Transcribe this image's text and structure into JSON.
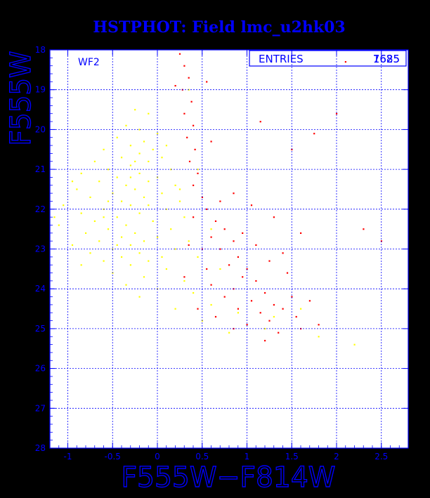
{
  "chart_data": {
    "type": "scatter",
    "title": "HSTPHOT: Field lmc_u2hk03",
    "xlabel": "F555W−F814W",
    "ylabel": "F555W",
    "xlim": [
      -1.2,
      2.8
    ],
    "ylim": [
      28,
      18
    ],
    "y_inverted": true,
    "grid": true,
    "panel_label": "WF2",
    "stats_box": {
      "label": "ENTRIES",
      "values": [
        "7625",
        "1685"
      ]
    },
    "x_ticks": [
      -1,
      -0.5,
      0,
      0.5,
      1,
      1.5,
      2,
      2.5
    ],
    "x_tick_labels": [
      "-1",
      "-0.5",
      "0",
      "0.5",
      "1",
      "1.5",
      "2",
      "2.5"
    ],
    "y_ticks": [
      18,
      19,
      20,
      21,
      22,
      23,
      24,
      25,
      26,
      27,
      28
    ],
    "y_tick_labels": [
      "18",
      "19",
      "20",
      "21",
      "22",
      "23",
      "24",
      "25",
      "26",
      "27",
      "28"
    ],
    "series": [
      {
        "color": "#ffff00",
        "count": 7625,
        "points": [
          [
            -0.25,
            19.5
          ],
          [
            -0.1,
            19.6
          ],
          [
            -0.35,
            19.9
          ],
          [
            -0.2,
            20.0
          ],
          [
            0.0,
            20.1
          ],
          [
            -0.45,
            20.2
          ],
          [
            -0.15,
            20.3
          ],
          [
            -0.3,
            20.4
          ],
          [
            0.1,
            20.4
          ],
          [
            -0.6,
            20.5
          ],
          [
            -0.2,
            20.6
          ],
          [
            -0.4,
            20.7
          ],
          [
            0.05,
            20.7
          ],
          [
            -0.7,
            20.8
          ],
          [
            -0.1,
            20.8
          ],
          [
            -0.3,
            20.9
          ],
          [
            -0.55,
            21.0
          ],
          [
            0.15,
            21.0
          ],
          [
            -0.2,
            21.1
          ],
          [
            -0.85,
            21.1
          ],
          [
            -0.45,
            21.2
          ],
          [
            0.0,
            21.2
          ],
          [
            -0.65,
            21.3
          ],
          [
            -0.1,
            21.3
          ],
          [
            -0.35,
            21.4
          ],
          [
            0.2,
            21.4
          ],
          [
            -0.9,
            21.5
          ],
          [
            -0.25,
            21.5
          ],
          [
            -0.5,
            21.6
          ],
          [
            0.05,
            21.6
          ],
          [
            -0.75,
            21.7
          ],
          [
            -0.15,
            21.7
          ],
          [
            -0.4,
            21.8
          ],
          [
            0.25,
            21.8
          ],
          [
            -1.05,
            21.9
          ],
          [
            -0.3,
            21.9
          ],
          [
            -0.6,
            22.0
          ],
          [
            0.1,
            22.0
          ],
          [
            -0.2,
            22.1
          ],
          [
            -0.85,
            22.1
          ],
          [
            -0.45,
            22.2
          ],
          [
            0.3,
            22.2
          ],
          [
            -0.7,
            22.3
          ],
          [
            -0.05,
            22.3
          ],
          [
            -0.35,
            22.4
          ],
          [
            -1.1,
            22.4
          ],
          [
            -0.55,
            22.5
          ],
          [
            0.15,
            22.5
          ],
          [
            -0.25,
            22.6
          ],
          [
            -0.8,
            22.6
          ],
          [
            -0.4,
            22.7
          ],
          [
            0.0,
            22.7
          ],
          [
            -0.65,
            22.8
          ],
          [
            -0.15,
            22.8
          ],
          [
            -0.95,
            22.9
          ],
          [
            -0.3,
            22.9
          ],
          [
            -0.5,
            23.0
          ],
          [
            0.2,
            23.0
          ],
          [
            -0.2,
            23.1
          ],
          [
            -0.75,
            23.1
          ],
          [
            -0.4,
            23.2
          ],
          [
            0.05,
            23.2
          ],
          [
            -0.6,
            23.3
          ],
          [
            -0.1,
            23.3
          ],
          [
            -0.85,
            23.4
          ],
          [
            -0.3,
            23.4
          ],
          [
            0.1,
            23.5
          ],
          [
            -0.5,
            23.6
          ],
          [
            -0.15,
            23.7
          ],
          [
            0.3,
            23.8
          ],
          [
            -0.35,
            23.9
          ],
          [
            0.0,
            24.0
          ],
          [
            0.4,
            24.1
          ],
          [
            -0.2,
            24.2
          ],
          [
            0.6,
            24.4
          ],
          [
            0.2,
            24.5
          ],
          [
            0.9,
            24.6
          ],
          [
            0.5,
            24.8
          ],
          [
            1.3,
            24.7
          ],
          [
            1.6,
            24.5
          ],
          [
            1.2,
            25.0
          ],
          [
            0.8,
            25.1
          ],
          [
            1.8,
            25.2
          ],
          [
            2.2,
            25.4
          ],
          [
            0.45,
            21.0
          ],
          [
            0.6,
            22.5
          ],
          [
            0.7,
            23.5
          ],
          [
            0.35,
            19.0
          ],
          [
            -0.95,
            21.3
          ],
          [
            -1.15,
            22.2
          ],
          [
            -0.05,
            20.5
          ],
          [
            0.25,
            21.5
          ],
          [
            0.35,
            22.8
          ],
          [
            0.45,
            23.2
          ],
          [
            -0.6,
            22.2
          ],
          [
            -0.3,
            21.2
          ],
          [
            -0.1,
            21.9
          ],
          [
            -0.45,
            22.9
          ],
          [
            -0.25,
            20.8
          ],
          [
            -0.55,
            21.8
          ]
        ]
      },
      {
        "color": "#ff0000",
        "count": 1685,
        "points": [
          [
            0.25,
            18.1
          ],
          [
            0.3,
            18.4
          ],
          [
            0.35,
            18.7
          ],
          [
            0.28,
            19.0
          ],
          [
            0.38,
            19.3
          ],
          [
            0.3,
            19.6
          ],
          [
            0.4,
            19.9
          ],
          [
            0.33,
            20.2
          ],
          [
            0.42,
            20.5
          ],
          [
            0.36,
            20.8
          ],
          [
            0.45,
            21.1
          ],
          [
            0.4,
            21.4
          ],
          [
            0.5,
            21.7
          ],
          [
            0.55,
            22.0
          ],
          [
            0.65,
            22.3
          ],
          [
            0.75,
            22.5
          ],
          [
            0.6,
            22.7
          ],
          [
            0.85,
            22.8
          ],
          [
            0.7,
            23.0
          ],
          [
            0.9,
            23.2
          ],
          [
            0.8,
            23.4
          ],
          [
            1.0,
            23.5
          ],
          [
            0.95,
            23.7
          ],
          [
            1.1,
            23.8
          ],
          [
            0.85,
            24.0
          ],
          [
            1.2,
            24.1
          ],
          [
            1.05,
            24.3
          ],
          [
            1.3,
            24.4
          ],
          [
            1.15,
            24.6
          ],
          [
            1.4,
            24.5
          ],
          [
            1.25,
            24.8
          ],
          [
            1.55,
            24.7
          ],
          [
            1.0,
            24.9
          ],
          [
            1.35,
            25.1
          ],
          [
            1.6,
            25.0
          ],
          [
            0.75,
            24.2
          ],
          [
            0.6,
            23.9
          ],
          [
            0.55,
            23.5
          ],
          [
            0.5,
            23.0
          ],
          [
            0.95,
            22.6
          ],
          [
            1.1,
            22.9
          ],
          [
            1.25,
            23.3
          ],
          [
            1.45,
            23.6
          ],
          [
            1.5,
            24.2
          ],
          [
            0.7,
            21.8
          ],
          [
            0.85,
            21.6
          ],
          [
            1.05,
            21.9
          ],
          [
            1.3,
            22.2
          ],
          [
            1.15,
            19.8
          ],
          [
            1.5,
            20.5
          ],
          [
            1.75,
            20.1
          ],
          [
            2.0,
            19.6
          ],
          [
            0.2,
            18.9
          ],
          [
            0.55,
            18.8
          ],
          [
            0.6,
            20.3
          ],
          [
            1.8,
            24.9
          ],
          [
            1.7,
            24.3
          ],
          [
            2.3,
            22.5
          ],
          [
            2.5,
            22.8
          ],
          [
            2.1,
            18.3
          ],
          [
            0.45,
            24.5
          ],
          [
            0.3,
            23.7
          ],
          [
            0.35,
            22.9
          ],
          [
            0.4,
            22.2
          ],
          [
            0.85,
            25.0
          ],
          [
            1.2,
            25.3
          ],
          [
            0.65,
            24.7
          ],
          [
            0.9,
            24.5
          ],
          [
            1.4,
            23.1
          ],
          [
            1.6,
            22.6
          ]
        ]
      }
    ]
  }
}
